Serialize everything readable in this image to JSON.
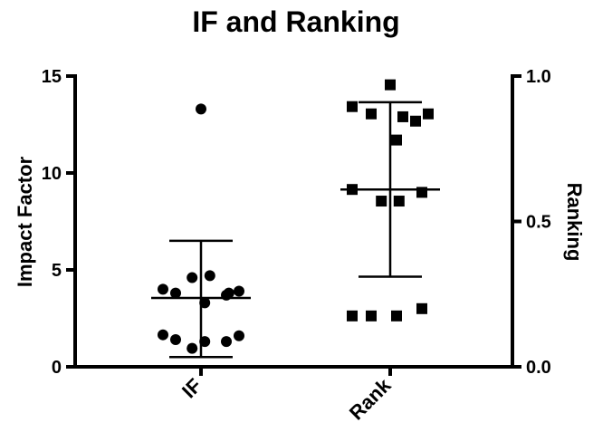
{
  "chart_data": {
    "type": "scatter",
    "title": "IF and Ranking",
    "categories": [
      "IF",
      "Rank"
    ],
    "y_left": {
      "label": "Impact Factor",
      "range": [
        0,
        15
      ],
      "ticks": [
        0,
        5,
        10,
        15
      ],
      "tick_labels": [
        "0",
        "5",
        "10",
        "15"
      ]
    },
    "y_right": {
      "label": "Ranking",
      "range": [
        0,
        1
      ],
      "ticks": [
        0,
        0.5,
        1
      ],
      "tick_labels": [
        "0.0",
        "0.5",
        "1.0"
      ]
    },
    "series": [
      {
        "name": "IF",
        "category": "IF",
        "axis": "left",
        "marker": "circle",
        "values": [
          13.3,
          4.0,
          3.8,
          4.6,
          4.7,
          3.7,
          3.3,
          3.8,
          3.9,
          1.65,
          1.4,
          0.95,
          1.3,
          1.3,
          1.6
        ],
        "offsets": [
          0,
          -3,
          -2,
          -0.7,
          0.7,
          2,
          0.3,
          2.2,
          3,
          -3,
          -2,
          -0.7,
          0.3,
          2,
          3
        ],
        "mean": 3.55,
        "error_upper": 6.5,
        "error_lower": 0.5
      },
      {
        "name": "Rank",
        "category": "Rank",
        "axis": "right",
        "marker": "square",
        "values": [
          0.97,
          0.895,
          0.87,
          0.87,
          0.845,
          0.86,
          0.78,
          0.61,
          0.6,
          0.57,
          0.57,
          0.2,
          0.175,
          0.175,
          0.175
        ],
        "offsets": [
          0,
          -3,
          -1.5,
          3,
          2,
          1,
          0.5,
          -3,
          2.5,
          -0.7,
          0.7,
          2.5,
          -3,
          -1.5,
          0.5
        ],
        "mean": 0.61,
        "error_upper": 0.91,
        "error_lower": 0.31
      }
    ]
  }
}
